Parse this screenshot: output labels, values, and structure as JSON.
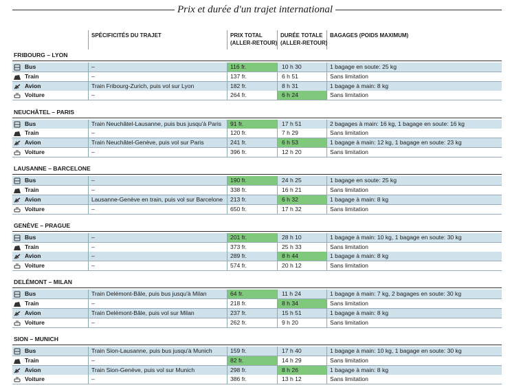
{
  "title": "Prix et durée d'un trajet international",
  "header": {
    "route": "SPÉCIFICITÉS DU TRAJET",
    "price": [
      "PRIX TOTAL",
      "(ALLER-RETOUR)"
    ],
    "duration": [
      "DURÉE TOTALE",
      "(ALLER-RETOUR)"
    ],
    "baggage": "BAGAGES (POIDS MAXIMUM)"
  },
  "sections": [
    {
      "name": "FRIBOURG – LYON",
      "rows": [
        {
          "mode": "Bus",
          "route": "–",
          "price": "116 fr.",
          "duration": "10 h 30",
          "baggage": "1 bagage en soute: 25 kg",
          "highlight": [
            "price"
          ]
        },
        {
          "mode": "Train",
          "route": "–",
          "price": "137 fr.",
          "duration": "6 h 51",
          "baggage": "Sans limitation",
          "highlight": []
        },
        {
          "mode": "Avion",
          "route": "Train Fribourg-Zurich, puis vol sur Lyon",
          "price": "182 fr.",
          "duration": "8 h 31",
          "baggage": "1 bagage à main: 8 kg",
          "highlight": []
        },
        {
          "mode": "Voiture",
          "route": "–",
          "price": "264 fr.",
          "duration": "6 h 24",
          "baggage": "Sans limitation",
          "highlight": [
            "duration"
          ]
        }
      ]
    },
    {
      "name": "NEUCHÂTEL – PARIS",
      "rows": [
        {
          "mode": "Bus",
          "route": "Train Neuchâtel-Lausanne, puis bus jusqu'à Paris",
          "price": "91 fr.",
          "duration": "17 h 51",
          "baggage": "2 bagages à main: 16 kg,  1 bagage en soute: 16 kg",
          "highlight": [
            "price"
          ]
        },
        {
          "mode": "Train",
          "route": "–",
          "price": "120 fr.",
          "duration": "7 h 29",
          "baggage": "Sans limitation",
          "highlight": []
        },
        {
          "mode": "Avion",
          "route": "Train Neuchâtel-Genève, puis vol sur Paris",
          "price": "241 fr.",
          "duration": "6 h 53",
          "baggage": "1 bagage à main: 12 kg, 1 bagage en soute: 23 kg",
          "highlight": [
            "duration"
          ]
        },
        {
          "mode": "Voiture",
          "route": "–",
          "price": "396 fr.",
          "duration": "12 h 20",
          "baggage": "Sans limitation",
          "highlight": []
        }
      ]
    },
    {
      "name": "LAUSANNE – BARCELONE",
      "rows": [
        {
          "mode": "Bus",
          "route": "–",
          "price": "190 fr.",
          "duration": "24 h 25",
          "baggage": "1 bagage en soute: 25 kg",
          "highlight": [
            "price"
          ]
        },
        {
          "mode": "Train",
          "route": "–",
          "price": "338 fr.",
          "duration": "16 h 21",
          "baggage": "Sans limitation",
          "highlight": []
        },
        {
          "mode": "Avion",
          "route": "Lausanne-Genève en train, puis vol sur Barcelone",
          "price": "213 fr.",
          "duration": "6 h 32",
          "baggage": "1 bagage à main: 8 kg",
          "highlight": [
            "duration"
          ]
        },
        {
          "mode": "Voiture",
          "route": "–",
          "price": "650 fr.",
          "duration": "17 h 32",
          "baggage": "Sans limitation",
          "highlight": []
        }
      ]
    },
    {
      "name": "GENÈVE – PRAGUE",
      "rows": [
        {
          "mode": "Bus",
          "route": "–",
          "price": "201 fr.",
          "duration": "28 h 10",
          "baggage": "1 bagage à main: 10 kg, 1 bagage en soute: 30 kg",
          "highlight": [
            "price"
          ]
        },
        {
          "mode": "Train",
          "route": "–",
          "price": "373 fr.",
          "duration": "25 h 33",
          "baggage": "Sans limitation",
          "highlight": []
        },
        {
          "mode": "Avion",
          "route": "–",
          "price": "289 fr.",
          "duration": "8 h 44",
          "baggage": "1 bagage à main: 8 kg",
          "highlight": [
            "duration"
          ]
        },
        {
          "mode": "Voiture",
          "route": "–",
          "price": "574 fr.",
          "duration": "20 h 12",
          "baggage": "Sans limitation",
          "highlight": []
        }
      ]
    },
    {
      "name": "DELÉMONT – MILAN",
      "rows": [
        {
          "mode": "Bus",
          "route": "Train Delémont-Bâle, puis bus jusqu'à Milan",
          "price": "64 fr.",
          "duration": "11 h 24",
          "baggage": "1 bagage à main: 7 kg, 2 bagages en soute: 30 kg",
          "highlight": [
            "price"
          ]
        },
        {
          "mode": "Train",
          "route": "–",
          "price": "218 fr.",
          "duration": "8 h 34",
          "baggage": "Sans limitation",
          "highlight": [
            "duration"
          ]
        },
        {
          "mode": "Avion",
          "route": "Train Delémont-Bâle, puis vol sur Milan",
          "price": "237 fr.",
          "duration": "15 h 51",
          "baggage": "1 bagage à main: 8 kg",
          "highlight": []
        },
        {
          "mode": "Voiture",
          "route": "–",
          "price": "262 fr.",
          "duration": "9 h 20",
          "baggage": "Sans limitation",
          "highlight": []
        }
      ]
    },
    {
      "name": "SION – MUNICH",
      "rows": [
        {
          "mode": "Bus",
          "route": "Train Sion-Lausanne, puis bus jusqu'à Munich",
          "price": "159 fr.",
          "duration": "17 h 40",
          "baggage": "1 bagage à main: 10 kg, 1 bagage en soute: 30 kg",
          "highlight": []
        },
        {
          "mode": "Train",
          "route": "–",
          "price": "82 fr.",
          "duration": "14 h 29",
          "baggage": "Sans limitation",
          "highlight": [
            "price"
          ]
        },
        {
          "mode": "Avion",
          "route": "Train Sion-Genève, puis vol sur Munich",
          "price": "298 fr.",
          "duration": "8 h 26",
          "baggage": "1 bagage à main: 8 kg",
          "highlight": [
            "duration"
          ]
        },
        {
          "mode": "Voiture",
          "route": "–",
          "price": "386 fr.",
          "duration": "13 h 12",
          "baggage": "Sans limitation",
          "highlight": []
        }
      ]
    }
  ]
}
